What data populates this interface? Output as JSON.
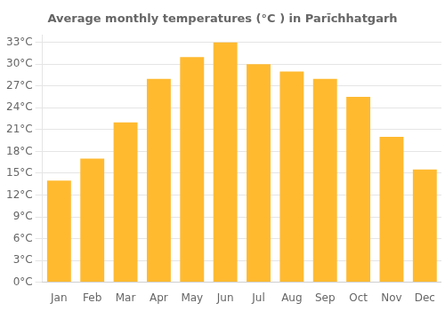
{
  "chart_data": {
    "type": "bar",
    "title": "Average monthly temperatures (°C ) in Parīchhatgarh",
    "categories": [
      "Jan",
      "Feb",
      "Mar",
      "Apr",
      "May",
      "Jun",
      "Jul",
      "Aug",
      "Sep",
      "Oct",
      "Nov",
      "Dec"
    ],
    "values": [
      14,
      17,
      22,
      28,
      31,
      33,
      30,
      29,
      28,
      25.5,
      20,
      15.5
    ],
    "color": "#FFBA30",
    "ylim": [
      0,
      34
    ],
    "yticks": [
      {
        "value": 0,
        "label": "0°C"
      },
      {
        "value": 3,
        "label": "3°C"
      },
      {
        "value": 6,
        "label": "6°C"
      },
      {
        "value": 9,
        "label": "9°C"
      },
      {
        "value": 12,
        "label": "12°C"
      },
      {
        "value": 15,
        "label": "15°C"
      },
      {
        "value": 18,
        "label": "18°C"
      },
      {
        "value": 21,
        "label": "21°C"
      },
      {
        "value": 24,
        "label": "24°C"
      },
      {
        "value": 27,
        "label": "27°C"
      },
      {
        "value": 30,
        "label": "30°C"
      },
      {
        "value": 33,
        "label": "33°C"
      }
    ],
    "grid": true
  }
}
